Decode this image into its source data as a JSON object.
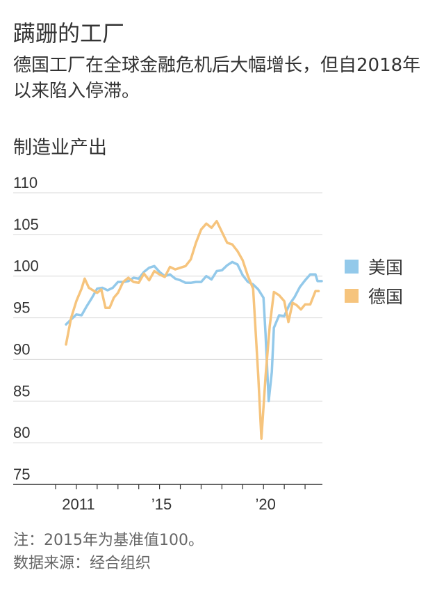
{
  "title": "蹒跚的工厂",
  "subtitle": "德国工厂在全球金融危机后大幅增长，但自2018年以来陷入停滞。",
  "note": "注：2015年为基准值100。",
  "source": "数据来源：经合组织",
  "colors": {
    "us": "#93c9ea",
    "germany": "#f6c47d",
    "grid": "#d9d9d9",
    "axis": "#333333",
    "text": "#333333"
  },
  "chart_data": {
    "type": "line",
    "ylabel": "制造业产出",
    "ylim": [
      75,
      110
    ],
    "yticks": [
      75,
      80,
      85,
      90,
      95,
      100,
      105,
      110
    ],
    "xrange": [
      2010.0,
      2022.8
    ],
    "xticks": [
      {
        "x": 2011,
        "label": "2011"
      },
      {
        "x": 2015,
        "label": "’15"
      },
      {
        "x": 2020,
        "label": "’20"
      }
    ],
    "series": [
      {
        "name": "美国",
        "color_key": "us",
        "points": [
          [
            2010.5,
            94.2
          ],
          [
            2010.75,
            94.8
          ],
          [
            2011.0,
            95.4
          ],
          [
            2011.25,
            95.3
          ],
          [
            2011.5,
            96.4
          ],
          [
            2011.75,
            97.4
          ],
          [
            2012.0,
            98.5
          ],
          [
            2012.25,
            98.6
          ],
          [
            2012.5,
            98.3
          ],
          [
            2012.75,
            98.6
          ],
          [
            2013.0,
            99.3
          ],
          [
            2013.25,
            99.3
          ],
          [
            2013.5,
            99.4
          ],
          [
            2013.75,
            99.8
          ],
          [
            2014.0,
            99.7
          ],
          [
            2014.25,
            100.5
          ],
          [
            2014.5,
            101.0
          ],
          [
            2014.75,
            101.2
          ],
          [
            2015.0,
            100.5
          ],
          [
            2015.25,
            100.0
          ],
          [
            2015.5,
            100.2
          ],
          [
            2015.75,
            99.7
          ],
          [
            2016.0,
            99.5
          ],
          [
            2016.25,
            99.2
          ],
          [
            2016.5,
            99.2
          ],
          [
            2016.75,
            99.3
          ],
          [
            2017.0,
            99.3
          ],
          [
            2017.25,
            100.0
          ],
          [
            2017.5,
            99.6
          ],
          [
            2017.75,
            100.6
          ],
          [
            2018.0,
            100.7
          ],
          [
            2018.25,
            101.3
          ],
          [
            2018.5,
            101.7
          ],
          [
            2018.75,
            101.4
          ],
          [
            2019.0,
            100.1
          ],
          [
            2019.25,
            99.3
          ],
          [
            2019.5,
            99.0
          ],
          [
            2019.75,
            98.4
          ],
          [
            2020.0,
            97.4
          ],
          [
            2020.1,
            93.0
          ],
          [
            2020.25,
            85.0
          ],
          [
            2020.4,
            88.5
          ],
          [
            2020.5,
            93.8
          ],
          [
            2020.75,
            95.3
          ],
          [
            2021.0,
            95.2
          ],
          [
            2021.25,
            96.6
          ],
          [
            2021.5,
            97.5
          ],
          [
            2021.75,
            98.7
          ],
          [
            2022.0,
            99.5
          ],
          [
            2022.25,
            100.2
          ],
          [
            2022.5,
            100.2
          ],
          [
            2022.6,
            99.4
          ],
          [
            2022.8,
            99.4
          ]
        ]
      },
      {
        "name": "德国",
        "color_key": "germany",
        "points": [
          [
            2010.5,
            91.8
          ],
          [
            2010.75,
            95.0
          ],
          [
            2011.0,
            97.0
          ],
          [
            2011.25,
            98.5
          ],
          [
            2011.4,
            99.7
          ],
          [
            2011.6,
            98.6
          ],
          [
            2011.8,
            98.3
          ],
          [
            2012.0,
            98.0
          ],
          [
            2012.2,
            98.4
          ],
          [
            2012.4,
            96.2
          ],
          [
            2012.6,
            96.2
          ],
          [
            2012.8,
            97.4
          ],
          [
            2013.0,
            98.0
          ],
          [
            2013.25,
            99.3
          ],
          [
            2013.5,
            99.8
          ],
          [
            2013.75,
            99.3
          ],
          [
            2014.0,
            99.2
          ],
          [
            2014.25,
            100.3
          ],
          [
            2014.5,
            99.5
          ],
          [
            2014.75,
            100.6
          ],
          [
            2015.0,
            100.2
          ],
          [
            2015.25,
            99.9
          ],
          [
            2015.5,
            101.1
          ],
          [
            2015.75,
            100.8
          ],
          [
            2016.0,
            101.0
          ],
          [
            2016.25,
            101.2
          ],
          [
            2016.5,
            102.0
          ],
          [
            2016.75,
            104.0
          ],
          [
            2017.0,
            105.6
          ],
          [
            2017.25,
            106.3
          ],
          [
            2017.5,
            105.8
          ],
          [
            2017.75,
            106.6
          ],
          [
            2018.0,
            105.3
          ],
          [
            2018.25,
            104.0
          ],
          [
            2018.5,
            103.8
          ],
          [
            2018.75,
            103.0
          ],
          [
            2019.0,
            101.9
          ],
          [
            2019.25,
            100.0
          ],
          [
            2019.5,
            98.5
          ],
          [
            2019.75,
            88.0
          ],
          [
            2019.9,
            80.5
          ],
          [
            2020.1,
            88.0
          ],
          [
            2020.3,
            94.0
          ],
          [
            2020.5,
            98.1
          ],
          [
            2020.75,
            97.7
          ],
          [
            2021.0,
            97.0
          ],
          [
            2021.2,
            94.5
          ],
          [
            2021.4,
            96.8
          ],
          [
            2021.6,
            96.5
          ],
          [
            2021.8,
            96.0
          ],
          [
            2022.0,
            96.6
          ],
          [
            2022.25,
            96.6
          ],
          [
            2022.5,
            98.2
          ],
          [
            2022.65,
            98.2
          ]
        ]
      }
    ],
    "legend": "right",
    "grid": true
  }
}
